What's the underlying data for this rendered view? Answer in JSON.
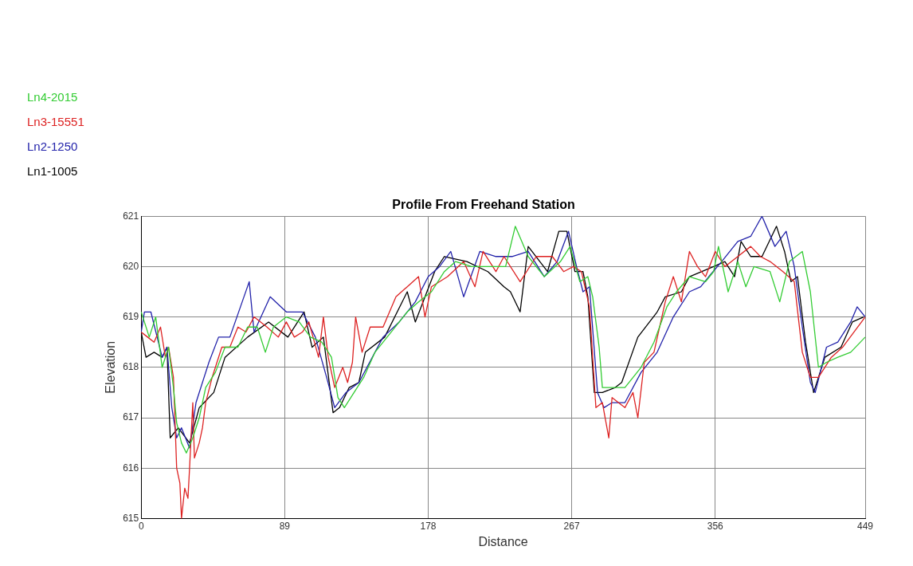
{
  "chart_data": {
    "type": "line",
    "title": "Profile From Freehand Station",
    "xlabel": "Distance",
    "ylabel": "Elevation",
    "xlim": [
      0,
      449
    ],
    "xticks": [
      0,
      89,
      178,
      267,
      356,
      449
    ],
    "ylim": [
      615,
      621
    ],
    "yticks": [
      615,
      616,
      617,
      618,
      619,
      620,
      621
    ],
    "grid": true,
    "legend": "top left",
    "marker": "none",
    "line_style": "solid",
    "series": [
      {
        "name": "Ln4-2015",
        "color": "#33cc33",
        "x": [
          0,
          5,
          9,
          13,
          17,
          20,
          22,
          25,
          28,
          32,
          36,
          40,
          46,
          52,
          60,
          66,
          72,
          77,
          82,
          90,
          98,
          105,
          112,
          118,
          122,
          126,
          132,
          138,
          145,
          155,
          165,
          172,
          180,
          188,
          195,
          205,
          215,
          226,
          232,
          240,
          250,
          260,
          266,
          272,
          277,
          280,
          284,
          286,
          292,
          300,
          310,
          318,
          326,
          332,
          340,
          350,
          355,
          358,
          364,
          370,
          375,
          380,
          390,
          396,
          402,
          410,
          415,
          420,
          425,
          432,
          440,
          449
        ],
        "values": [
          619.1,
          618.6,
          619.0,
          618.0,
          618.4,
          617.6,
          616.9,
          616.5,
          616.3,
          616.6,
          617.0,
          617.6,
          617.9,
          618.4,
          618.4,
          618.8,
          618.8,
          618.3,
          618.8,
          619.0,
          618.9,
          618.6,
          618.5,
          618.2,
          617.4,
          617.2,
          617.5,
          617.8,
          618.3,
          618.7,
          619.1,
          619.3,
          619.5,
          619.9,
          620.1,
          620.0,
          620.0,
          620.0,
          620.8,
          620.2,
          619.8,
          620.1,
          620.4,
          619.7,
          619.8,
          619.4,
          618.4,
          617.6,
          617.6,
          617.6,
          618.0,
          618.5,
          619.2,
          619.5,
          619.8,
          619.7,
          619.9,
          620.4,
          619.5,
          620.1,
          619.6,
          620.0,
          619.9,
          619.3,
          620.1,
          620.3,
          619.5,
          618.0,
          618.1,
          618.2,
          618.3,
          618.6
        ]
      },
      {
        "name": "Ln3-15551",
        "color": "#dd2222",
        "x": [
          0,
          4,
          8,
          12,
          15,
          17,
          20,
          22,
          24,
          25,
          27,
          29,
          30,
          32,
          33,
          36,
          38,
          40,
          44,
          50,
          55,
          60,
          65,
          70,
          78,
          85,
          90,
          95,
          100,
          104,
          110,
          113,
          116,
          120,
          125,
          128,
          131,
          133,
          137,
          142,
          150,
          158,
          165,
          172,
          176,
          180,
          190,
          200,
          207,
          212,
          220,
          225,
          235,
          245,
          255,
          262,
          268,
          273,
          278,
          282,
          286,
          290,
          292,
          300,
          305,
          308,
          312,
          318,
          325,
          330,
          335,
          340,
          345,
          350,
          356,
          362,
          370,
          378,
          384,
          390,
          398,
          405,
          410,
          415,
          420,
          428,
          435,
          442,
          449
        ],
        "values": [
          618.7,
          618.6,
          618.5,
          618.8,
          618.2,
          618.4,
          617.8,
          616.0,
          615.7,
          615.0,
          615.6,
          615.4,
          616.0,
          617.3,
          616.2,
          616.5,
          616.8,
          617.3,
          617.8,
          618.4,
          618.4,
          618.8,
          618.7,
          619.0,
          618.8,
          618.6,
          618.9,
          618.6,
          618.7,
          618.9,
          618.2,
          619.0,
          618.2,
          617.6,
          618.0,
          617.7,
          618.1,
          619.0,
          618.3,
          618.8,
          618.8,
          619.4,
          619.6,
          619.8,
          619.0,
          619.6,
          619.8,
          620.1,
          619.6,
          620.3,
          619.9,
          620.2,
          619.7,
          620.2,
          620.2,
          619.9,
          620.0,
          619.9,
          619.2,
          617.2,
          617.3,
          616.6,
          617.4,
          617.2,
          617.5,
          617.0,
          618.1,
          618.3,
          619.3,
          619.8,
          619.3,
          620.3,
          620.0,
          619.8,
          620.3,
          620.0,
          620.2,
          620.4,
          620.2,
          620.1,
          619.9,
          619.7,
          618.3,
          617.8,
          617.8,
          618.2,
          618.4,
          618.7,
          619.0
        ]
      },
      {
        "name": "Ln2-1250",
        "color": "#2222aa",
        "x": [
          0,
          2,
          6,
          13,
          16,
          19,
          22,
          25,
          30,
          34,
          42,
          48,
          55,
          67,
          70,
          80,
          90,
          100,
          108,
          115,
          120,
          127,
          135,
          150,
          160,
          170,
          178,
          185,
          192,
          200,
          210,
          220,
          230,
          240,
          250,
          258,
          265,
          270,
          274,
          278,
          283,
          287,
          292,
          300,
          310,
          320,
          330,
          340,
          347,
          352,
          360,
          370,
          378,
          385,
          393,
          400,
          405,
          410,
          415,
          418,
          425,
          432,
          440,
          444,
          449
        ],
        "values": [
          618.7,
          619.1,
          619.1,
          618.2,
          618.4,
          617.2,
          616.6,
          616.8,
          616.4,
          617.3,
          618.1,
          618.6,
          618.6,
          619.7,
          618.7,
          619.4,
          619.1,
          619.1,
          618.6,
          617.8,
          617.2,
          617.5,
          617.7,
          618.6,
          618.9,
          619.3,
          619.8,
          620.0,
          620.3,
          619.4,
          620.3,
          620.2,
          620.2,
          620.3,
          619.8,
          620.1,
          620.7,
          620.0,
          619.5,
          619.6,
          617.5,
          617.2,
          617.3,
          617.3,
          617.9,
          618.3,
          619.0,
          619.5,
          619.6,
          619.8,
          620.1,
          620.5,
          620.6,
          621.0,
          620.4,
          620.7,
          620.0,
          618.8,
          617.7,
          617.5,
          618.4,
          618.5,
          618.9,
          619.2,
          619.0
        ]
      },
      {
        "name": "Ln1-1005",
        "color": "#000000",
        "x": [
          0,
          3,
          8,
          13,
          16,
          18,
          23,
          30,
          36,
          45,
          52,
          66,
          79,
          91,
          101,
          106,
          113,
          119,
          123,
          129,
          135,
          139,
          151,
          165,
          170,
          182,
          188,
          202,
          215,
          225,
          229,
          235,
          240,
          252,
          259,
          264,
          269,
          274,
          277,
          281,
          286,
          294,
          298,
          308,
          320,
          325,
          335,
          340,
          355,
          362,
          368,
          372,
          378,
          385,
          394,
          399,
          403,
          407,
          412,
          417,
          424,
          434,
          441,
          448
        ],
        "values": [
          618.7,
          618.2,
          618.3,
          618.2,
          618.4,
          616.6,
          616.8,
          616.5,
          617.2,
          617.5,
          618.2,
          618.6,
          618.9,
          618.6,
          619.1,
          618.4,
          618.6,
          617.1,
          617.2,
          617.6,
          617.7,
          618.3,
          618.6,
          619.5,
          618.9,
          619.9,
          620.2,
          620.1,
          619.9,
          619.6,
          619.5,
          619.1,
          620.4,
          619.9,
          620.7,
          620.7,
          619.9,
          619.9,
          619.4,
          617.5,
          617.5,
          617.6,
          617.7,
          618.6,
          619.1,
          619.4,
          619.5,
          619.8,
          620.0,
          620.1,
          619.8,
          620.5,
          620.2,
          620.2,
          620.8,
          620.3,
          619.7,
          619.8,
          618.5,
          617.5,
          618.2,
          618.4,
          618.9,
          619.0
        ]
      }
    ]
  }
}
